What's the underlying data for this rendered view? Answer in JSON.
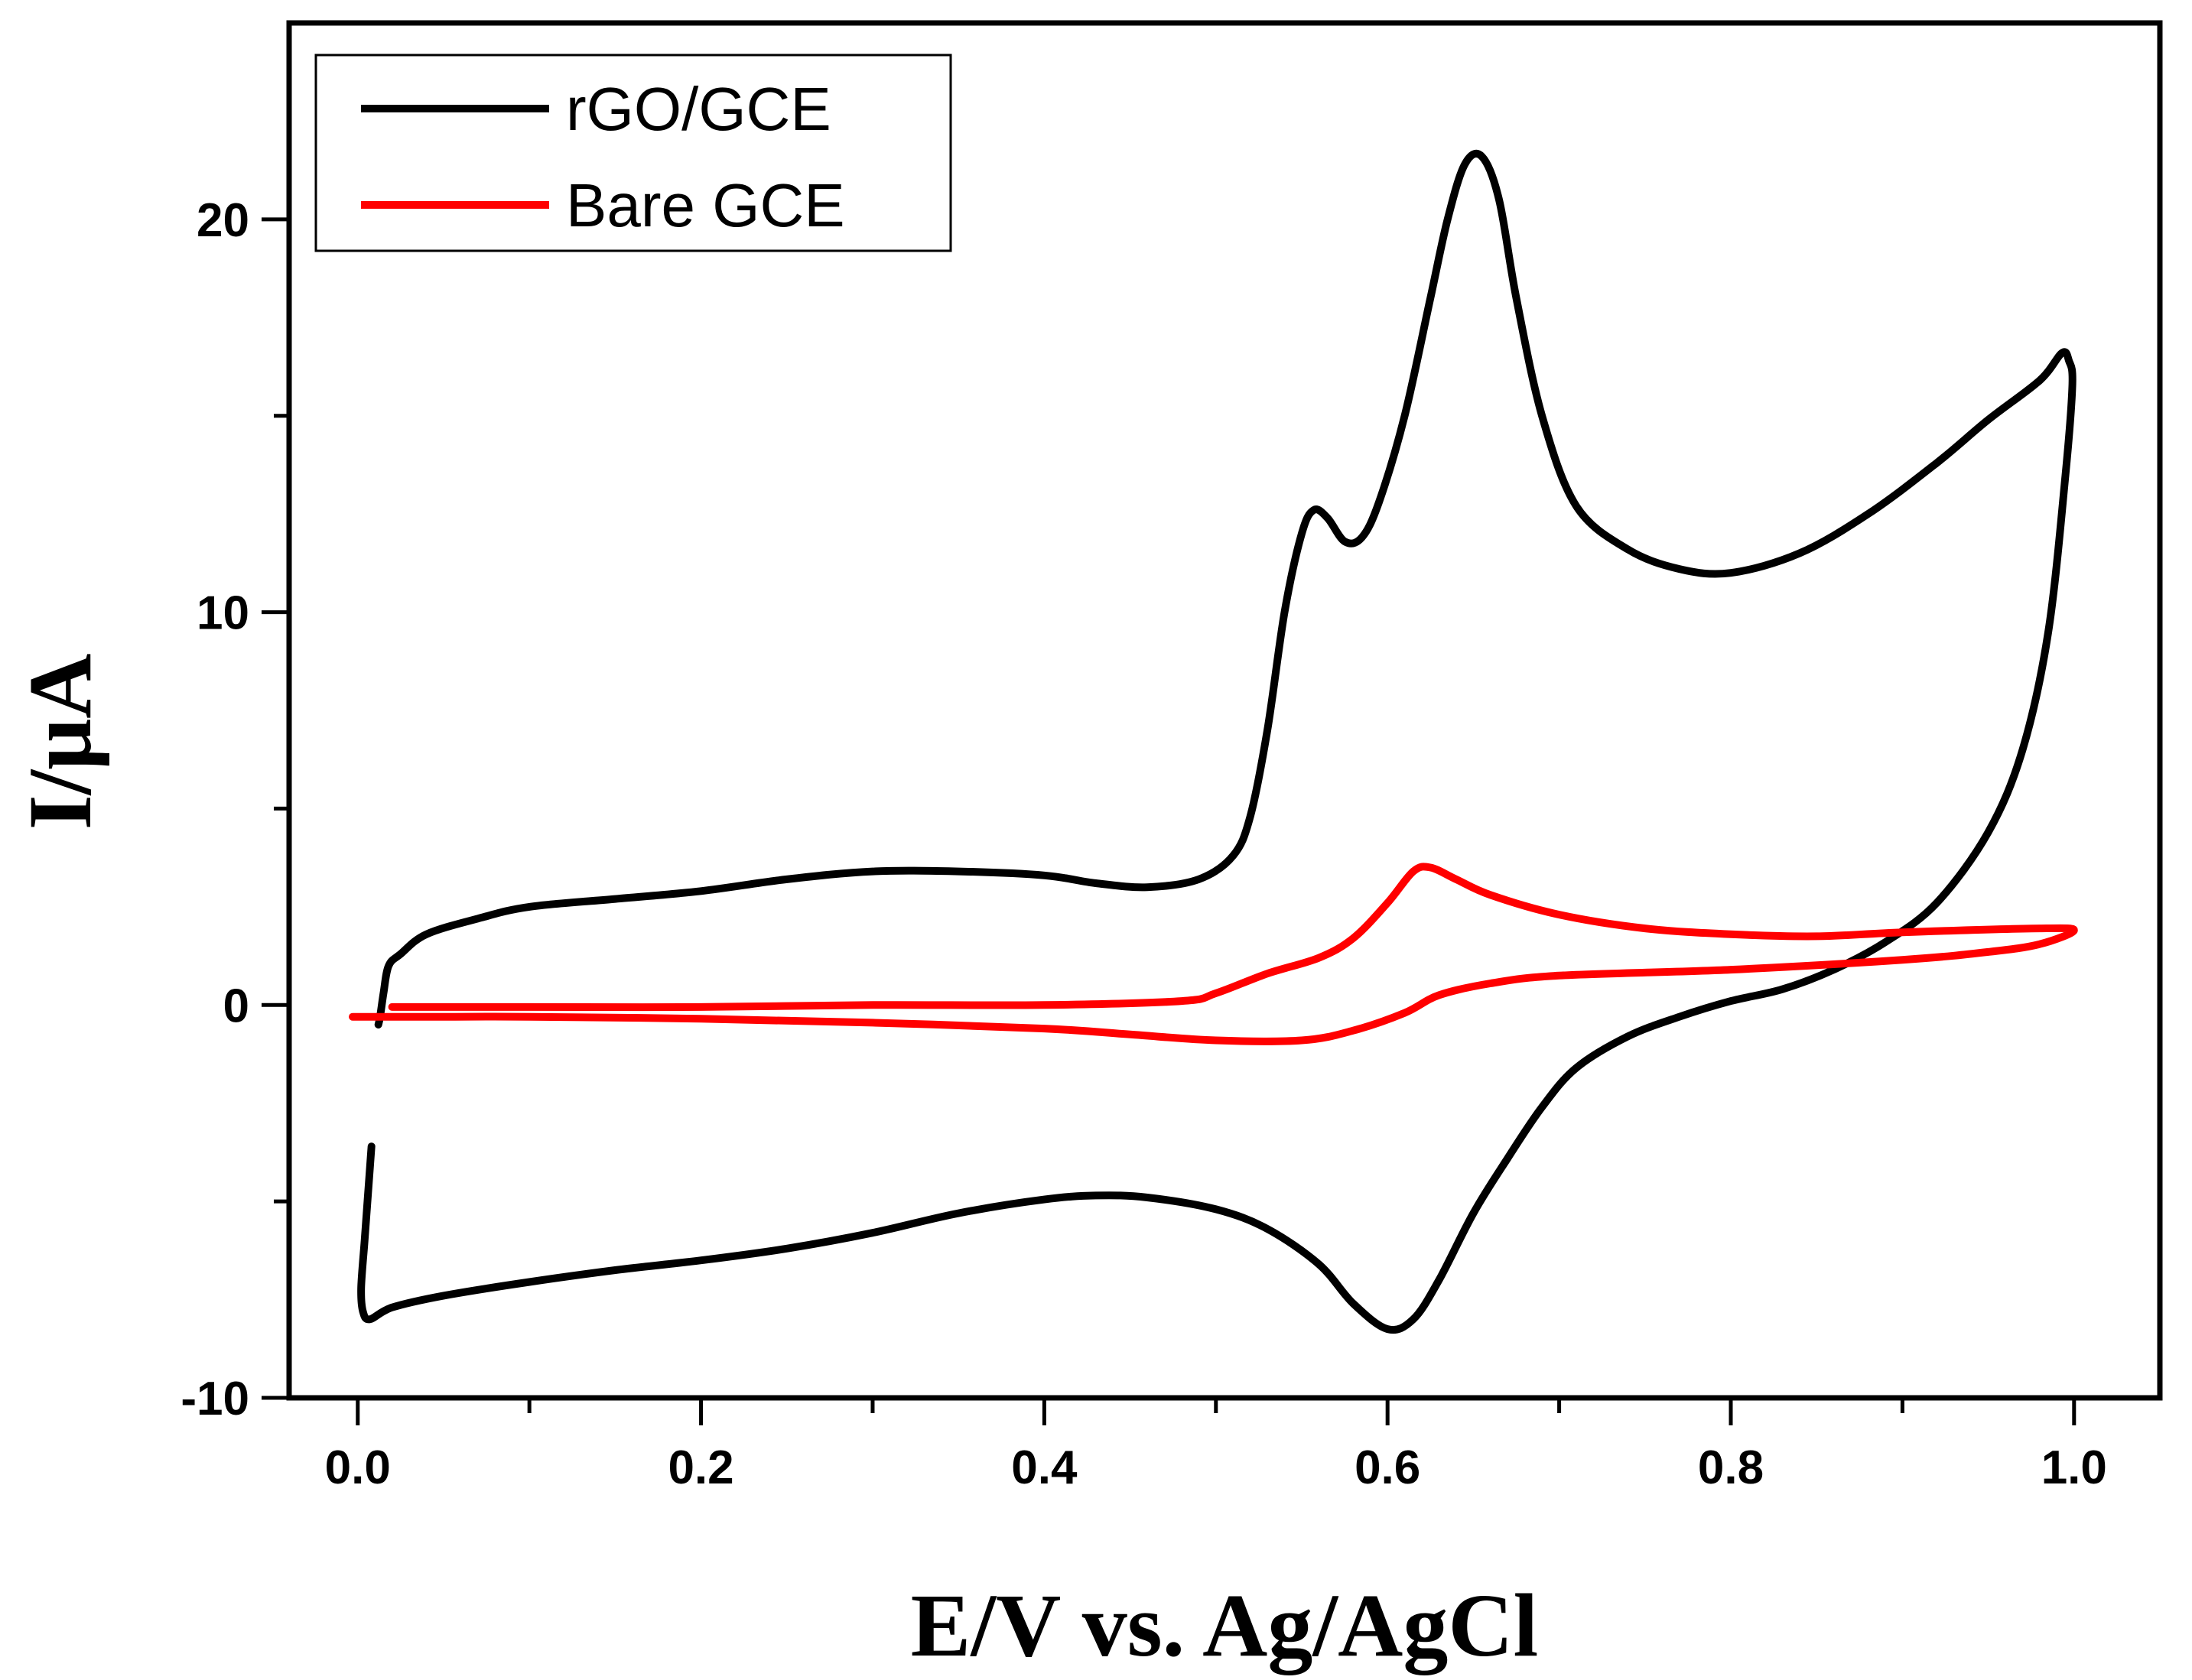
{
  "chart_data": {
    "type": "line",
    "title": "",
    "xlabel": "E/V vs. Ag/AgCl",
    "ylabel": "I/μA",
    "xlim": [
      -0.04,
      1.05
    ],
    "ylim": [
      -10,
      25
    ],
    "xticks": [
      0.0,
      0.2,
      0.4,
      0.6,
      0.8,
      1.0
    ],
    "xtick_labels": [
      "0.0",
      "0.2",
      "0.4",
      "0.6",
      "0.8",
      "1.0"
    ],
    "xticks_minor": [
      0.1,
      0.3,
      0.5,
      0.7,
      0.9
    ],
    "yticks": [
      -10,
      0,
      10,
      20
    ],
    "ytick_labels": [
      "-10",
      "0",
      "10",
      "20"
    ],
    "yticks_minor": [
      -5,
      5,
      15
    ],
    "grid": false,
    "legend_position": "top-left",
    "series": [
      {
        "name": "rGO/GCE",
        "color": "#000000",
        "points": [
          [
            0.008,
            -3.6
          ],
          [
            0.006,
            -4.8
          ],
          [
            0.004,
            -6.0
          ],
          [
            0.002,
            -7.2
          ],
          [
            0.003,
            -7.8
          ],
          [
            0.007,
            -8.0
          ],
          [
            0.02,
            -7.7
          ],
          [
            0.05,
            -7.4
          ],
          [
            0.1,
            -7.05
          ],
          [
            0.15,
            -6.75
          ],
          [
            0.2,
            -6.5
          ],
          [
            0.25,
            -6.2
          ],
          [
            0.3,
            -5.8
          ],
          [
            0.35,
            -5.3
          ],
          [
            0.4,
            -4.95
          ],
          [
            0.43,
            -4.85
          ],
          [
            0.46,
            -4.9
          ],
          [
            0.5,
            -5.2
          ],
          [
            0.53,
            -5.7
          ],
          [
            0.56,
            -6.6
          ],
          [
            0.58,
            -7.6
          ],
          [
            0.6,
            -8.25
          ],
          [
            0.615,
            -8.0
          ],
          [
            0.63,
            -7.0
          ],
          [
            0.65,
            -5.3
          ],
          [
            0.67,
            -3.9
          ],
          [
            0.69,
            -2.6
          ],
          [
            0.71,
            -1.6
          ],
          [
            0.74,
            -0.8
          ],
          [
            0.77,
            -0.3
          ],
          [
            0.8,
            0.1
          ],
          [
            0.83,
            0.4
          ],
          [
            0.86,
            0.9
          ],
          [
            0.89,
            1.6
          ],
          [
            0.92,
            2.6
          ],
          [
            0.95,
            4.4
          ],
          [
            0.97,
            6.5
          ],
          [
            0.985,
            9.5
          ],
          [
            0.995,
            13.5
          ],
          [
            0.999,
            15.8
          ],
          [
            0.997,
            16.4
          ],
          [
            0.993,
            16.6
          ],
          [
            0.98,
            15.9
          ],
          [
            0.95,
            14.9
          ],
          [
            0.92,
            13.8
          ],
          [
            0.88,
            12.5
          ],
          [
            0.84,
            11.5
          ],
          [
            0.8,
            11.0
          ],
          [
            0.77,
            11.1
          ],
          [
            0.74,
            11.6
          ],
          [
            0.71,
            12.7
          ],
          [
            0.69,
            15.0
          ],
          [
            0.675,
            18.0
          ],
          [
            0.665,
            20.5
          ],
          [
            0.655,
            21.6
          ],
          [
            0.645,
            21.4
          ],
          [
            0.635,
            20.0
          ],
          [
            0.625,
            18.0
          ],
          [
            0.61,
            15.0
          ],
          [
            0.595,
            12.8
          ],
          [
            0.585,
            11.9
          ],
          [
            0.575,
            11.8
          ],
          [
            0.565,
            12.4
          ],
          [
            0.557,
            12.6
          ],
          [
            0.55,
            12.0
          ],
          [
            0.54,
            10.0
          ],
          [
            0.53,
            7.0
          ],
          [
            0.52,
            4.8
          ],
          [
            0.51,
            3.8
          ],
          [
            0.49,
            3.2
          ],
          [
            0.46,
            3.0
          ],
          [
            0.43,
            3.1
          ],
          [
            0.4,
            3.3
          ],
          [
            0.35,
            3.4
          ],
          [
            0.3,
            3.4
          ],
          [
            0.25,
            3.2
          ],
          [
            0.2,
            2.9
          ],
          [
            0.15,
            2.7
          ],
          [
            0.1,
            2.5
          ],
          [
            0.07,
            2.2
          ],
          [
            0.04,
            1.8
          ],
          [
            0.025,
            1.3
          ],
          [
            0.018,
            1.0
          ],
          [
            0.015,
            0.3
          ],
          [
            0.013,
            -0.3
          ],
          [
            0.012,
            -0.5
          ]
        ]
      },
      {
        "name": "Bare GCE",
        "color": "#ff0000",
        "points": [
          [
            -0.003,
            -0.3
          ],
          [
            0.05,
            -0.3
          ],
          [
            0.1,
            -0.3
          ],
          [
            0.2,
            -0.35
          ],
          [
            0.3,
            -0.45
          ],
          [
            0.4,
            -0.6
          ],
          [
            0.45,
            -0.75
          ],
          [
            0.5,
            -0.9
          ],
          [
            0.55,
            -0.9
          ],
          [
            0.58,
            -0.65
          ],
          [
            0.61,
            -0.2
          ],
          [
            0.63,
            0.25
          ],
          [
            0.66,
            0.55
          ],
          [
            0.7,
            0.75
          ],
          [
            0.8,
            0.9
          ],
          [
            0.9,
            1.15
          ],
          [
            0.95,
            1.35
          ],
          [
            0.98,
            1.55
          ],
          [
            1.0,
            1.9
          ],
          [
            0.98,
            1.95
          ],
          [
            0.9,
            1.85
          ],
          [
            0.85,
            1.75
          ],
          [
            0.8,
            1.8
          ],
          [
            0.75,
            1.95
          ],
          [
            0.7,
            2.3
          ],
          [
            0.66,
            2.8
          ],
          [
            0.64,
            3.2
          ],
          [
            0.625,
            3.5
          ],
          [
            0.615,
            3.4
          ],
          [
            0.6,
            2.6
          ],
          [
            0.58,
            1.7
          ],
          [
            0.56,
            1.2
          ],
          [
            0.53,
            0.8
          ],
          [
            0.5,
            0.3
          ],
          [
            0.48,
            0.1
          ],
          [
            0.4,
            0.0
          ],
          [
            0.3,
            0.0
          ],
          [
            0.2,
            -0.05
          ],
          [
            0.1,
            -0.05
          ],
          [
            0.02,
            -0.05
          ]
        ]
      }
    ]
  }
}
